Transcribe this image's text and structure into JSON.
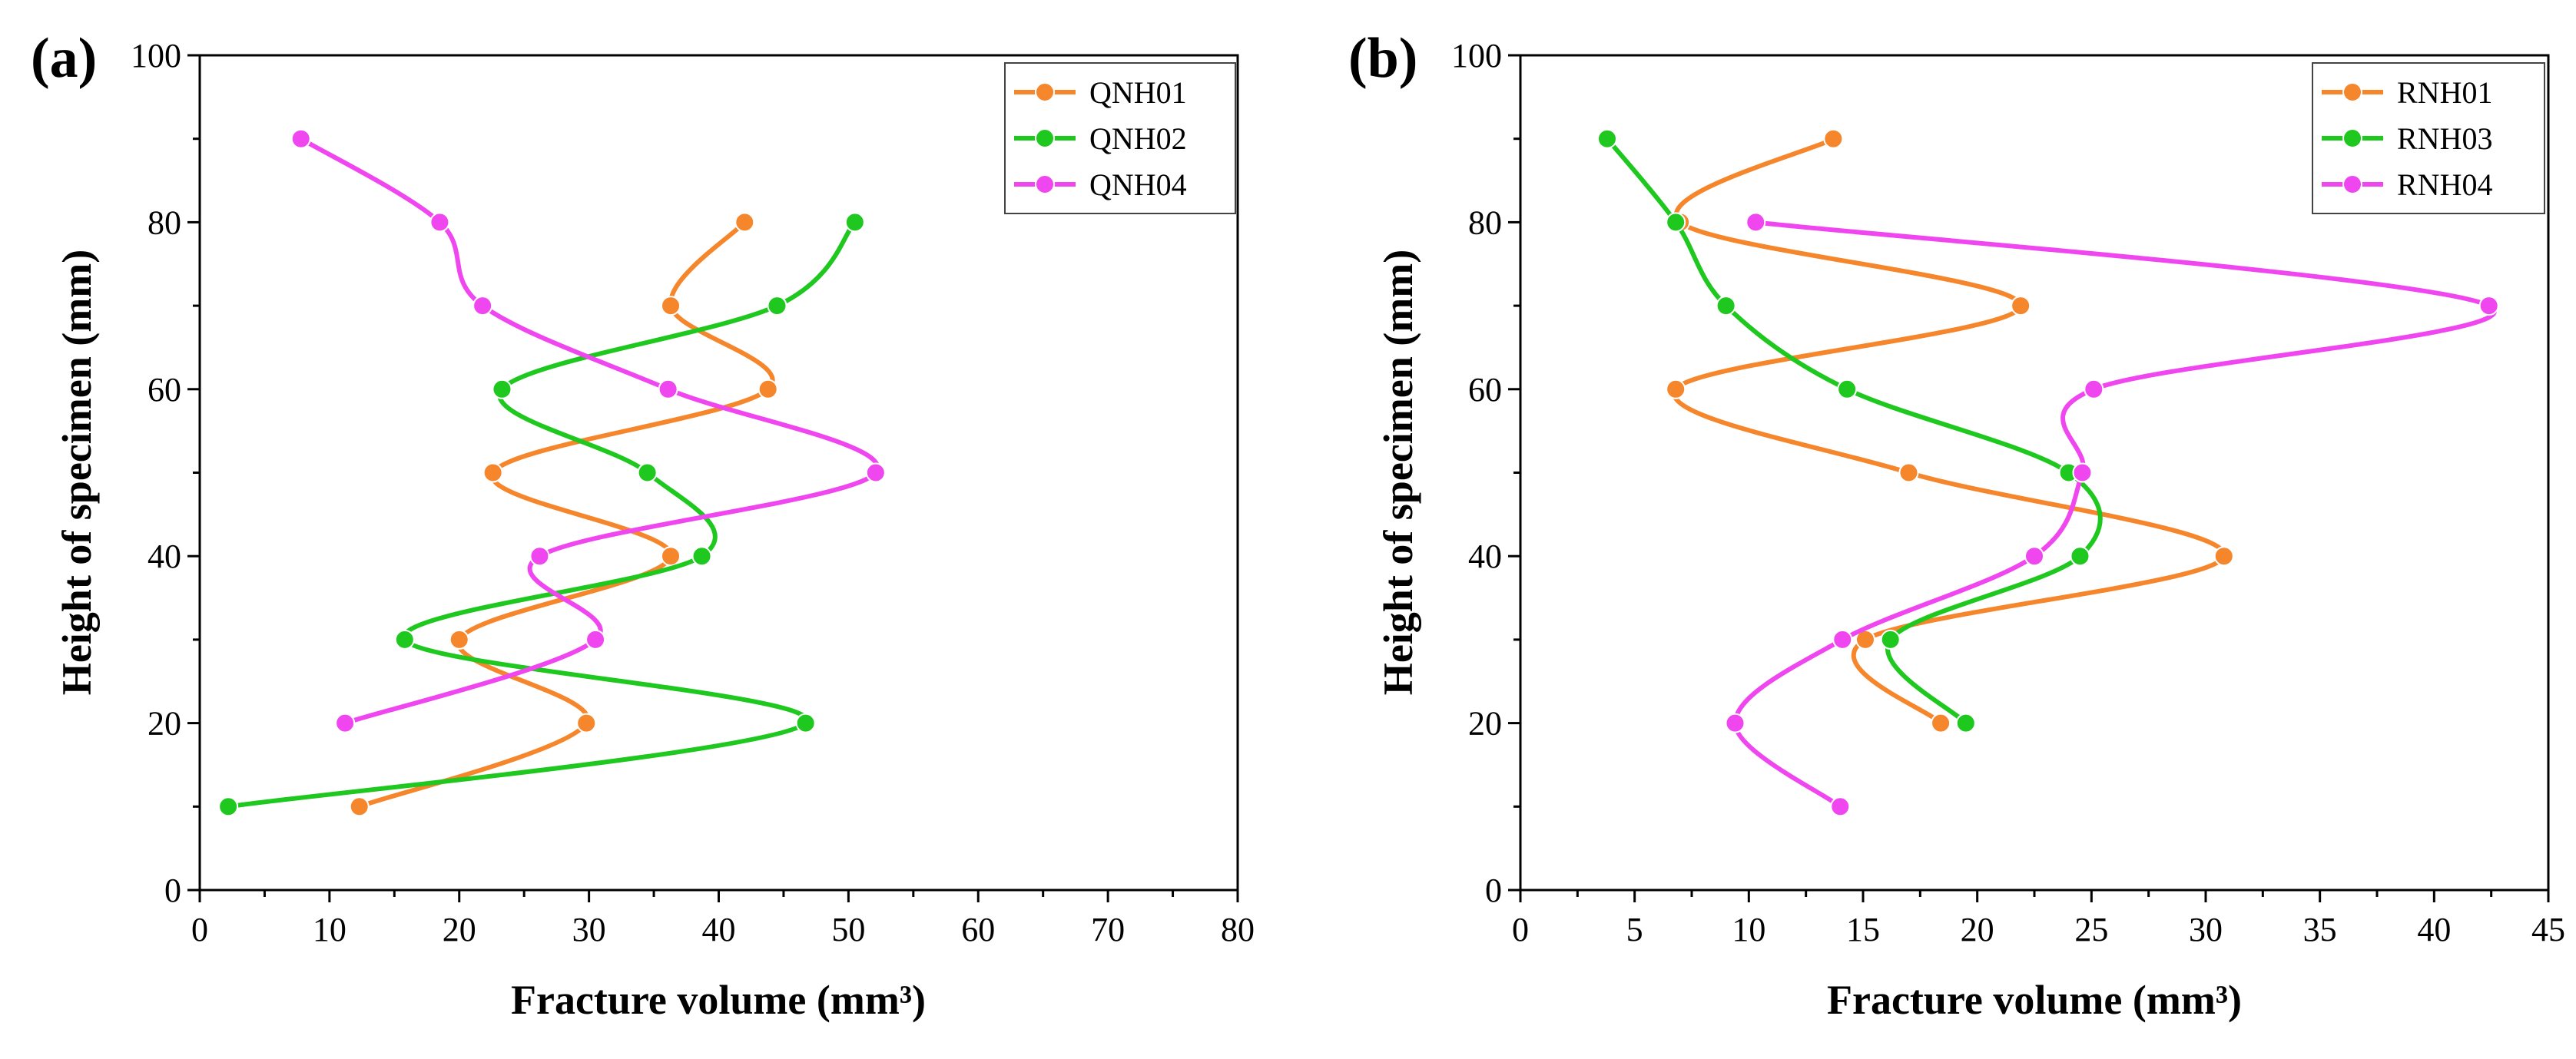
{
  "figure": {
    "panels": [
      "(a)",
      "(b)"
    ]
  },
  "chart_data": [
    {
      "type": "line",
      "panel_label": "(a)",
      "xlabel": "Fracture volume (mm³)",
      "ylabel": "Height of specimen (mm)",
      "xlim": [
        0,
        80
      ],
      "ylim": [
        0,
        100
      ],
      "xticks": [
        0,
        10,
        20,
        30,
        40,
        50,
        60,
        70,
        80
      ],
      "yticks": [
        0,
        20,
        40,
        60,
        80,
        100
      ],
      "legend_position": "top-right",
      "series": [
        {
          "name": "QNH01",
          "color": "#f5862b",
          "points": [
            [
              12.3,
              10
            ],
            [
              29.8,
              20
            ],
            [
              20.0,
              30
            ],
            [
              36.3,
              40
            ],
            [
              22.6,
              50
            ],
            [
              43.8,
              60
            ],
            [
              36.3,
              70
            ],
            [
              42.0,
              80
            ]
          ]
        },
        {
          "name": "QNH02",
          "color": "#1ec81e",
          "points": [
            [
              2.2,
              10
            ],
            [
              46.7,
              20
            ],
            [
              15.8,
              30
            ],
            [
              38.7,
              40
            ],
            [
              34.5,
              50
            ],
            [
              23.3,
              60
            ],
            [
              44.5,
              70
            ],
            [
              50.5,
              80
            ]
          ]
        },
        {
          "name": "QNH04",
          "color": "#f046ef",
          "points": [
            [
              11.2,
              20
            ],
            [
              30.5,
              30
            ],
            [
              26.2,
              40
            ],
            [
              52.1,
              50
            ],
            [
              36.1,
              60
            ],
            [
              21.8,
              70
            ],
            [
              18.5,
              80
            ],
            [
              7.8,
              90
            ]
          ]
        }
      ]
    },
    {
      "type": "line",
      "panel_label": "(b)",
      "xlabel": "Fracture volume (mm³)",
      "ylabel": "Height of specimen (mm)",
      "xlim": [
        0,
        45
      ],
      "ylim": [
        0,
        100
      ],
      "xticks": [
        0,
        5,
        10,
        15,
        20,
        25,
        30,
        35,
        40,
        45
      ],
      "yticks": [
        0,
        20,
        40,
        60,
        80,
        100
      ],
      "legend_position": "top-right",
      "series": [
        {
          "name": "RNH01",
          "color": "#f5862b",
          "points": [
            [
              18.4,
              20
            ],
            [
              15.1,
              30
            ],
            [
              30.8,
              40
            ],
            [
              17.0,
              50
            ],
            [
              6.8,
              60
            ],
            [
              21.9,
              70
            ],
            [
              7.0,
              80
            ],
            [
              13.7,
              90
            ]
          ]
        },
        {
          "name": "RNH03",
          "color": "#1ec81e",
          "points": [
            [
              19.5,
              20
            ],
            [
              16.2,
              30
            ],
            [
              24.5,
              40
            ],
            [
              24.0,
              50
            ],
            [
              14.3,
              60
            ],
            [
              9.0,
              70
            ],
            [
              6.8,
              80
            ],
            [
              3.8,
              90
            ]
          ]
        },
        {
          "name": "RNH04",
          "color": "#f046ef",
          "points": [
            [
              14.0,
              10
            ],
            [
              9.4,
              20
            ],
            [
              14.1,
              30
            ],
            [
              22.5,
              40
            ],
            [
              24.6,
              50
            ],
            [
              25.1,
              60
            ],
            [
              42.4,
              70
            ],
            [
              10.3,
              80
            ]
          ]
        }
      ]
    }
  ]
}
